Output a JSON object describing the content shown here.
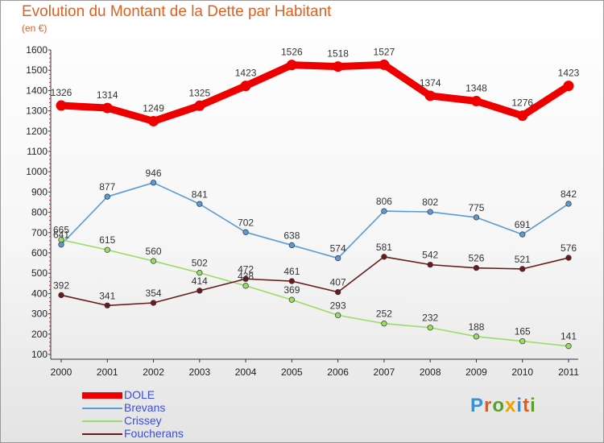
{
  "title": "Evolution du Montant de la Dette par Habitant",
  "unit_label": "(en €)",
  "logo_text": "Proxiti",
  "chart_data": {
    "type": "line",
    "title": "Evolution du Montant de la Dette par Habitant",
    "ylabel": "(en €)",
    "xlabel": "",
    "x": [
      2000,
      2001,
      2002,
      2003,
      2004,
      2005,
      2006,
      2007,
      2008,
      2009,
      2010,
      2011
    ],
    "ylim": [
      100,
      1600
    ],
    "yticks": [
      100,
      200,
      300,
      400,
      500,
      600,
      700,
      800,
      900,
      1000,
      1100,
      1200,
      1300,
      1400,
      1500,
      1600
    ],
    "grid": false,
    "legend_position": "bottom-left",
    "series": [
      {
        "name": "DOLE",
        "color": "#ee0000",
        "values": [
          1326,
          1314,
          1249,
          1325,
          1423,
          1526,
          1518,
          1527,
          1374,
          1348,
          1276,
          1423
        ]
      },
      {
        "name": "Brevans",
        "color": "#5b9bd5",
        "values": [
          641,
          877,
          946,
          841,
          702,
          638,
          574,
          806,
          802,
          775,
          691,
          842
        ]
      },
      {
        "name": "Crissey",
        "color": "#99dd66",
        "values": [
          665,
          615,
          560,
          502,
          438,
          369,
          293,
          252,
          232,
          188,
          165,
          141
        ]
      },
      {
        "name": "Foucherans",
        "color": "#6b1a1a",
        "values": [
          392,
          341,
          354,
          414,
          472,
          461,
          407,
          581,
          542,
          526,
          521,
          576
        ]
      }
    ]
  }
}
